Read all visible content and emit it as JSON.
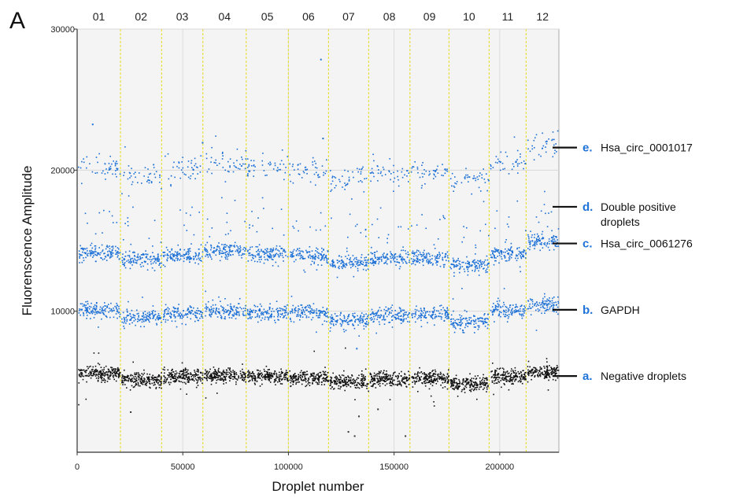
{
  "panel_label": "A",
  "chart_data": {
    "type": "scatter",
    "xlabel": "Droplet number",
    "ylabel": "Fluorenscence Amplitude",
    "xlim": [
      0,
      228000
    ],
    "ylim": [
      0,
      30000
    ],
    "x_ticks": [
      {
        "value": 0,
        "label": "0"
      },
      {
        "value": 50000,
        "label": "50000"
      },
      {
        "value": 100000,
        "label": "100000"
      },
      {
        "value": 150000,
        "label": "150000"
      },
      {
        "value": 200000,
        "label": "200000"
      }
    ],
    "y_ticks": [
      {
        "value": 10000,
        "label": "10000"
      },
      {
        "value": 20000,
        "label": "20000"
      },
      {
        "value": 30000,
        "label": "30000"
      }
    ],
    "grid": true,
    "wells": [
      {
        "label": "01",
        "start": 0,
        "end": 20500
      },
      {
        "label": "02",
        "start": 20500,
        "end": 40000
      },
      {
        "label": "03",
        "start": 40000,
        "end": 59500
      },
      {
        "label": "04",
        "start": 59500,
        "end": 80000
      },
      {
        "label": "05",
        "start": 80000,
        "end": 100000
      },
      {
        "label": "06",
        "start": 100000,
        "end": 119000
      },
      {
        "label": "07",
        "start": 119000,
        "end": 138000
      },
      {
        "label": "08",
        "start": 138000,
        "end": 157500
      },
      {
        "label": "09",
        "start": 157500,
        "end": 176000
      },
      {
        "label": "10",
        "start": 176000,
        "end": 195000
      },
      {
        "label": "11",
        "start": 195000,
        "end": 212500
      },
      {
        "label": "12",
        "start": 212500,
        "end": 228000
      }
    ],
    "clusters": [
      {
        "key": "e",
        "color": "#1a6fd6",
        "density": 0.35,
        "spread": 450,
        "well_means": [
          20300,
          19600,
          20100,
          20500,
          20200,
          20000,
          19400,
          19800,
          19900,
          19300,
          20700,
          21800
        ]
      },
      {
        "key": "d",
        "color": "#1a6fd6",
        "density": 0.07,
        "spread": 700,
        "well_means": [
          16500,
          16200,
          16400,
          16600,
          16300,
          16200,
          15900,
          16200,
          16100,
          15800,
          16500,
          17600
        ]
      },
      {
        "key": "c",
        "color": "#1a6fd6",
        "density": 1.0,
        "spread": 280,
        "well_means": [
          14200,
          13700,
          14000,
          14300,
          14100,
          14000,
          13500,
          13800,
          13800,
          13300,
          14100,
          15000
        ]
      },
      {
        "key": "b",
        "color": "#1a6fd6",
        "density": 1.0,
        "spread": 280,
        "well_means": [
          10100,
          9600,
          9900,
          10100,
          10000,
          9900,
          9400,
          9800,
          9800,
          9300,
          10100,
          10500
        ]
      },
      {
        "key": "a",
        "color": "#111111",
        "density": 1.6,
        "spread": 260,
        "well_means": [
          5600,
          5200,
          5400,
          5500,
          5400,
          5300,
          5000,
          5200,
          5300,
          4900,
          5400,
          5700
        ]
      }
    ],
    "outliers": [
      {
        "x": 7000,
        "y": 23300,
        "color": "#1a6fd6"
      },
      {
        "x": 115000,
        "y": 27900,
        "color": "#1a6fd6"
      },
      {
        "x": 116000,
        "y": 22300,
        "color": "#1a6fd6"
      },
      {
        "x": 59000,
        "y": 22000,
        "color": "#1a6fd6"
      },
      {
        "x": 128000,
        "y": 1500,
        "color": "#333333"
      },
      {
        "x": 131000,
        "y": 1200,
        "color": "#333333"
      },
      {
        "x": 155000,
        "y": 1200,
        "color": "#333333"
      },
      {
        "x": 133000,
        "y": 2600,
        "color": "#333333"
      },
      {
        "x": 142000,
        "y": 3100,
        "color": "#333333"
      },
      {
        "x": 25000,
        "y": 2900,
        "color": "#333333"
      },
      {
        "x": 132000,
        "y": 7400,
        "color": "#1a6fd6"
      }
    ],
    "annotations": [
      {
        "letter": "e.",
        "lines": [
          "Hsa_circ_0001017"
        ],
        "y": 21600,
        "color": "#1e73d9"
      },
      {
        "letter": "d.",
        "lines": [
          "Double positive",
          "droplets"
        ],
        "y": 17400,
        "color": "#1e73d9"
      },
      {
        "letter": "c.",
        "lines": [
          "Hsa_circ_0061276"
        ],
        "y": 14800,
        "color": "#1e73d9"
      },
      {
        "letter": "b.",
        "lines": [
          "GAPDH"
        ],
        "y": 10100,
        "color": "#1e73d9"
      },
      {
        "letter": "a.",
        "lines": [
          "Negative droplets"
        ],
        "y": 5400,
        "color": "#1e73d9"
      }
    ]
  }
}
